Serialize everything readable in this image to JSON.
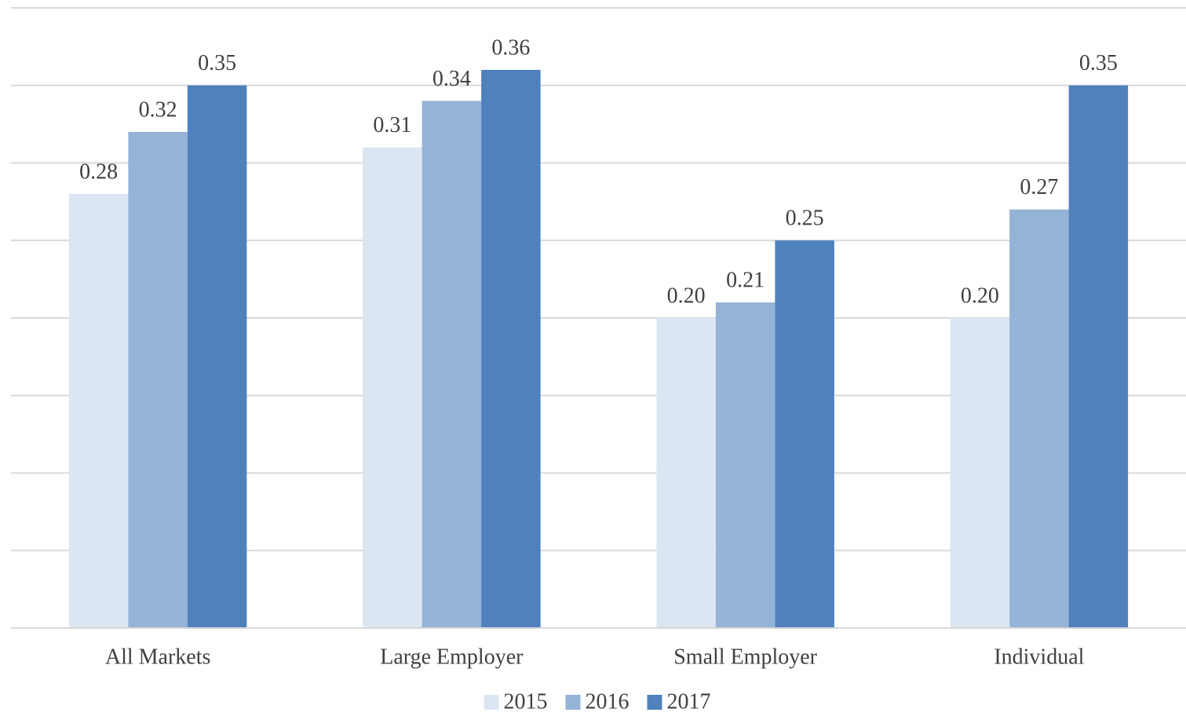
{
  "chart_data": {
    "type": "bar",
    "categories": [
      "All Markets",
      "Large Employer",
      "Small Employer",
      "Individual"
    ],
    "series": [
      {
        "name": "2015",
        "color": "#dce6f2",
        "values": [
          0.28,
          0.31,
          0.2,
          0.2
        ],
        "value_labels": [
          "0.28",
          "0.31",
          "0.20",
          "0.20"
        ]
      },
      {
        "name": "2016",
        "color": "#95b3d7",
        "values": [
          0.32,
          0.34,
          0.21,
          0.27
        ],
        "value_labels": [
          "0.32",
          "0.34",
          "0.21",
          "0.27"
        ]
      },
      {
        "name": "2017",
        "color": "#4f81bd",
        "values": [
          0.35,
          0.36,
          0.25,
          0.35
        ],
        "value_labels": [
          "0.35",
          "0.36",
          "0.25",
          "0.35"
        ]
      }
    ],
    "ylim": [
      0,
      0.4
    ],
    "yticks": [
      0,
      0.05,
      0.1,
      0.15,
      0.2,
      0.25,
      0.3,
      0.35,
      0.4
    ],
    "grid": true,
    "show_tick_labels": false,
    "legend": "bottom"
  }
}
